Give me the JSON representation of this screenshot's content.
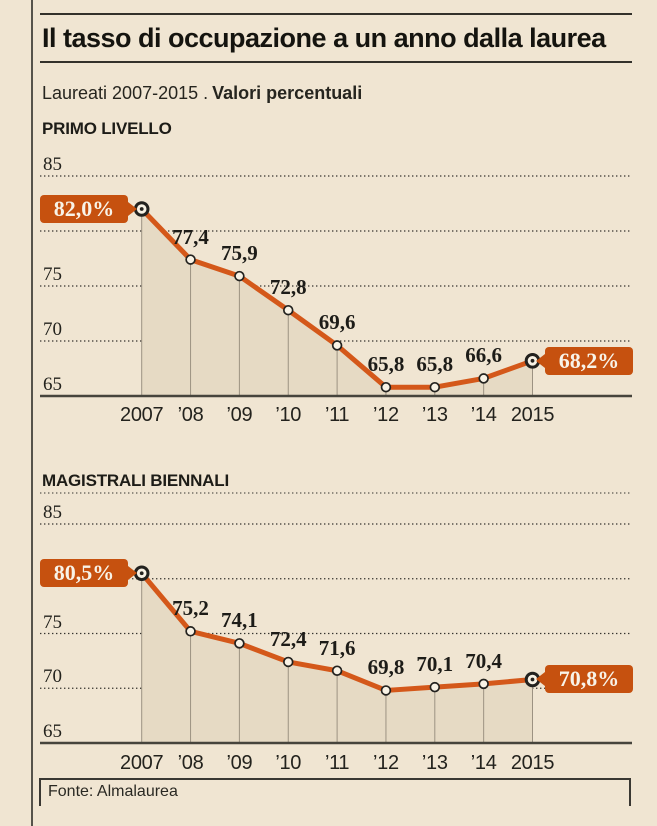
{
  "page": {
    "title": "Il tasso di occupazione a un anno dalla laurea",
    "subtitle_regular": "Laureati 2007-2015 .",
    "subtitle_bold": "Valori percentuali",
    "source": "Fonte: Almalaurea"
  },
  "colors": {
    "background": "#f0e5d2",
    "accent": "#c6510f",
    "line": "#d4581a",
    "area_fill": "#e6dac4",
    "grid": "#35332e",
    "axis": "#46443c",
    "drop_line": "#9c9282",
    "marker_fill": "#f8f2e5",
    "marker_stroke": "#23221f",
    "badge_text": "#f8f3e8"
  },
  "chart_data": [
    {
      "type": "line",
      "title": "PRIMO LIVELLO",
      "categories": [
        "2007",
        "’08",
        "’09",
        "’10",
        "’11",
        "’12",
        "’13",
        "’14",
        "2015"
      ],
      "values": [
        82.0,
        77.4,
        75.9,
        72.8,
        69.6,
        65.8,
        65.8,
        66.6,
        68.2
      ],
      "point_labels": [
        "82,0%",
        "77,4",
        "75,9",
        "72,8",
        "69,6",
        "65,8",
        "65,8",
        "66,6",
        "68,2%"
      ],
      "start_badge": "82,0%",
      "end_badge": "68,2%",
      "ylim": [
        65,
        85
      ],
      "ytick_labels": [
        "85",
        "75",
        "70",
        "65"
      ],
      "ytick_values": [
        85,
        75,
        70,
        65
      ],
      "gridline_values": [
        85,
        80,
        75,
        70
      ],
      "grid": "dotted",
      "area": "shaded"
    },
    {
      "type": "line",
      "title": "MAGISTRALI BIENNALI",
      "categories": [
        "2007",
        "’08",
        "’09",
        "’10",
        "’11",
        "’12",
        "’13",
        "’14",
        "2015"
      ],
      "values": [
        80.5,
        75.2,
        74.1,
        72.4,
        71.6,
        69.8,
        70.1,
        70.4,
        70.8
      ],
      "point_labels": [
        "80,5%",
        "75,2",
        "74,1",
        "72,4",
        "71,6",
        "69,8",
        "70,1",
        "70,4",
        "70,8%"
      ],
      "start_badge": "80,5%",
      "end_badge": "70,8%",
      "ylim": [
        65,
        85
      ],
      "ytick_labels": [
        "85",
        "75",
        "70",
        "65"
      ],
      "ytick_values": [
        85,
        75,
        70,
        65
      ],
      "gridline_values": [
        85,
        80,
        75,
        70
      ],
      "grid": "dotted",
      "area": "shaded"
    }
  ]
}
